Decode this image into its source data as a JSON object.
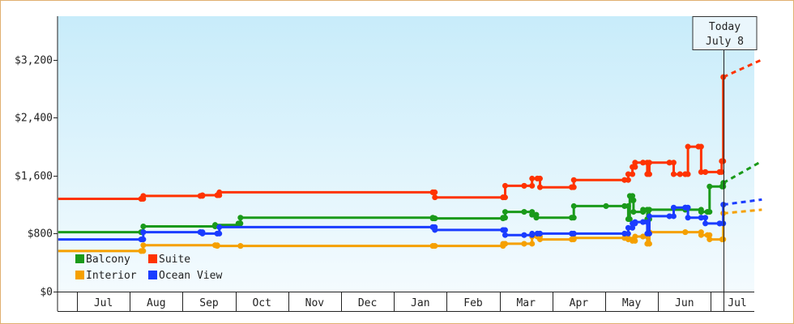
{
  "chart_data": {
    "type": "line",
    "step": true,
    "x_unit": "month index (0 = start of Jul of first year)",
    "y_unit": "USD",
    "ylim": [
      0,
      3800
    ],
    "y_ticks": [
      {
        "value": 0,
        "label": "$0"
      },
      {
        "value": 800,
        "label": "$800"
      },
      {
        "value": 1600,
        "label": "$1,600"
      },
      {
        "value": 2400,
        "label": "$2,400"
      },
      {
        "value": 3200,
        "label": "$3,200"
      }
    ],
    "x_ticks": [
      "Jul",
      "Aug",
      "Sep",
      "Oct",
      "Nov",
      "Dec",
      "Jan",
      "Feb",
      "Mar",
      "Apr",
      "May",
      "Jun",
      "Jul"
    ],
    "today_callout": {
      "line1": "Today",
      "line2": "July 8",
      "x": 12.22
    },
    "legend": [
      {
        "name": "Balcony",
        "color": "#1a9a1a"
      },
      {
        "name": "Suite",
        "color": "#ff3300"
      },
      {
        "name": "Interior",
        "color": "#f5a000"
      },
      {
        "name": "Ocean View",
        "color": "#1a3cff"
      }
    ],
    "series": [
      {
        "name": "Balcony",
        "color": "#1a9a1a",
        "points": [
          [
            -0.37,
            820
          ],
          [
            1.2,
            820
          ],
          [
            1.24,
            900
          ],
          [
            2.6,
            920
          ],
          [
            3.04,
            940
          ],
          [
            3.08,
            1020
          ],
          [
            6.72,
            1010
          ],
          [
            6.76,
            1010
          ],
          [
            8.05,
            1020
          ],
          [
            8.09,
            1100
          ],
          [
            8.45,
            1100
          ],
          [
            8.6,
            1060
          ],
          [
            8.68,
            1020
          ],
          [
            9.35,
            1020
          ],
          [
            9.39,
            1180
          ],
          [
            10.0,
            1180
          ],
          [
            10.35,
            1180
          ],
          [
            10.42,
            1000
          ],
          [
            10.45,
            1320
          ],
          [
            10.5,
            1260
          ],
          [
            10.52,
            1100
          ],
          [
            10.7,
            1130
          ],
          [
            10.78,
            1000
          ],
          [
            10.82,
            1130
          ],
          [
            11.5,
            1130
          ],
          [
            11.8,
            1100
          ],
          [
            11.92,
            1100
          ],
          [
            11.96,
            1450
          ],
          [
            12.2,
            1450
          ],
          [
            12.22,
            1500
          ]
        ]
      },
      {
        "name": "Suite",
        "color": "#ff3300",
        "points": [
          [
            -0.37,
            1280
          ],
          [
            1.2,
            1280
          ],
          [
            1.24,
            1320
          ],
          [
            2.32,
            1320
          ],
          [
            2.36,
            1330
          ],
          [
            2.64,
            1330
          ],
          [
            2.68,
            1370
          ],
          [
            6.72,
            1370
          ],
          [
            6.76,
            1300
          ],
          [
            8.05,
            1300
          ],
          [
            8.09,
            1460
          ],
          [
            8.45,
            1460
          ],
          [
            8.6,
            1560
          ],
          [
            8.7,
            1560
          ],
          [
            8.75,
            1440
          ],
          [
            9.35,
            1440
          ],
          [
            9.39,
            1540
          ],
          [
            10.35,
            1540
          ],
          [
            10.42,
            1620
          ],
          [
            10.5,
            1720
          ],
          [
            10.55,
            1780
          ],
          [
            10.7,
            1780
          ],
          [
            10.78,
            1620
          ],
          [
            10.82,
            1780
          ],
          [
            11.2,
            1780
          ],
          [
            11.28,
            1620
          ],
          [
            11.4,
            1620
          ],
          [
            11.5,
            1620
          ],
          [
            11.55,
            2000
          ],
          [
            11.75,
            2000
          ],
          [
            11.8,
            1650
          ],
          [
            11.88,
            1650
          ],
          [
            12.15,
            1650
          ],
          [
            12.19,
            1800
          ],
          [
            12.22,
            2960
          ]
        ]
      },
      {
        "name": "Interior",
        "color": "#f5a000",
        "points": [
          [
            -0.37,
            560
          ],
          [
            1.2,
            560
          ],
          [
            1.24,
            640
          ],
          [
            2.6,
            640
          ],
          [
            2.64,
            630
          ],
          [
            3.08,
            630
          ],
          [
            6.72,
            630
          ],
          [
            6.76,
            630
          ],
          [
            8.05,
            660
          ],
          [
            8.09,
            660
          ],
          [
            8.45,
            660
          ],
          [
            8.6,
            760
          ],
          [
            8.7,
            760
          ],
          [
            8.75,
            720
          ],
          [
            9.35,
            720
          ],
          [
            9.39,
            740
          ],
          [
            10.35,
            740
          ],
          [
            10.42,
            720
          ],
          [
            10.5,
            700
          ],
          [
            10.55,
            760
          ],
          [
            10.7,
            760
          ],
          [
            10.78,
            660
          ],
          [
            10.82,
            820
          ],
          [
            11.5,
            820
          ],
          [
            11.8,
            780
          ],
          [
            11.92,
            780
          ],
          [
            11.96,
            720
          ],
          [
            12.2,
            720
          ],
          [
            12.22,
            1080
          ]
        ]
      },
      {
        "name": "Ocean View",
        "color": "#1a3cff",
        "points": [
          [
            -0.37,
            720
          ],
          [
            1.2,
            720
          ],
          [
            1.24,
            820
          ],
          [
            2.32,
            820
          ],
          [
            2.36,
            800
          ],
          [
            2.64,
            800
          ],
          [
            2.68,
            890
          ],
          [
            6.72,
            890
          ],
          [
            6.76,
            850
          ],
          [
            8.05,
            850
          ],
          [
            8.09,
            780
          ],
          [
            8.45,
            780
          ],
          [
            8.6,
            800
          ],
          [
            8.7,
            800
          ],
          [
            8.75,
            800
          ],
          [
            9.35,
            800
          ],
          [
            9.39,
            800
          ],
          [
            10.35,
            800
          ],
          [
            10.42,
            880
          ],
          [
            10.5,
            940
          ],
          [
            10.55,
            960
          ],
          [
            10.7,
            960
          ],
          [
            10.78,
            800
          ],
          [
            10.82,
            1040
          ],
          [
            11.2,
            1040
          ],
          [
            11.28,
            1160
          ],
          [
            11.5,
            1160
          ],
          [
            11.55,
            1020
          ],
          [
            11.8,
            1020
          ],
          [
            11.88,
            940
          ],
          [
            12.15,
            940
          ],
          [
            12.22,
            1200
          ]
        ]
      }
    ],
    "projections": [
      {
        "name": "Suite",
        "color": "#ff3300",
        "from": [
          12.22,
          2960
        ],
        "to": [
          12.95,
          3200
        ]
      },
      {
        "name": "Balcony",
        "color": "#1a9a1a",
        "from": [
          12.22,
          1500
        ],
        "to": [
          12.95,
          1800
        ]
      },
      {
        "name": "Ocean View",
        "color": "#1a3cff",
        "from": [
          12.22,
          1200
        ],
        "to": [
          12.95,
          1270
        ]
      },
      {
        "name": "Interior",
        "color": "#f5a000",
        "from": [
          12.22,
          1080
        ],
        "to": [
          12.95,
          1130
        ]
      }
    ],
    "colors": {
      "plot_top": "#c8ecfa",
      "plot_bottom": "#f4fbfe",
      "frame_border": "#e0b070",
      "axis": "#222222"
    }
  }
}
